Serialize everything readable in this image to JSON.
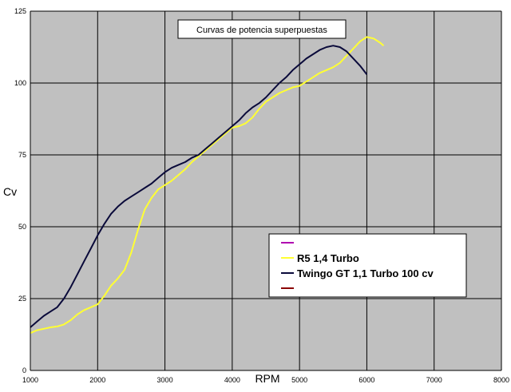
{
  "chart_data": {
    "type": "line",
    "title": "Curvas de potencia superpuestas",
    "xlabel": "RPM",
    "ylabel": "Cv",
    "xlim": [
      1000,
      8000
    ],
    "ylim": [
      0,
      125
    ],
    "x_ticks": [
      "1000",
      "2000",
      "3000",
      "4000",
      "5000",
      "6000",
      "7000",
      "8000"
    ],
    "y_ticks": [
      "0",
      "25",
      "50",
      "75",
      "100",
      "125"
    ],
    "grid": true,
    "plot_background": "#c0c0c0",
    "legend_position": "lower-right",
    "legend_entries": [
      {
        "label": "",
        "color": "#b000b0"
      },
      {
        "label": "R5 1,4 Turbo",
        "color": "#ffff33"
      },
      {
        "label": "Twingo GT 1,1 Turbo 100 cv",
        "color": "#0a0a3a"
      },
      {
        "label": "",
        "color": "#8b0000"
      }
    ],
    "series": [
      {
        "name": "R5 1,4 Turbo",
        "color": "#ffff33",
        "x": [
          1000,
          1100,
          1200,
          1300,
          1400,
          1500,
          1600,
          1700,
          1800,
          1900,
          2000,
          2100,
          2200,
          2300,
          2400,
          2500,
          2600,
          2700,
          2800,
          2900,
          3000,
          3100,
          3200,
          3300,
          3400,
          3500,
          3600,
          3700,
          3800,
          3900,
          4000,
          4100,
          4200,
          4300,
          4400,
          4500,
          4600,
          4700,
          4800,
          4900,
          5000,
          5100,
          5200,
          5300,
          5400,
          5500,
          5600,
          5700,
          5800,
          5900,
          6000,
          6100,
          6200,
          6250
        ],
        "y": [
          13,
          14,
          14.5,
          15,
          15.3,
          16,
          17.5,
          19.5,
          21,
          22,
          23,
          26,
          29.5,
          32,
          35,
          41,
          49,
          56,
          60,
          63,
          64.5,
          66,
          68,
          70,
          72.5,
          74.5,
          76.5,
          78.5,
          80.5,
          82.5,
          84.5,
          85,
          86,
          88,
          91,
          93.5,
          95,
          96.5,
          97.5,
          98.5,
          99,
          100.5,
          102,
          103.5,
          104.5,
          105.5,
          107,
          109.5,
          112,
          114.5,
          116,
          115.5,
          114,
          113
        ]
      },
      {
        "name": "Twingo GT 1,1 Turbo 100 cv",
        "color": "#0a0a3a",
        "x": [
          1000,
          1100,
          1200,
          1300,
          1400,
          1500,
          1600,
          1700,
          1800,
          1900,
          2000,
          2100,
          2200,
          2300,
          2400,
          2500,
          2600,
          2700,
          2800,
          2900,
          3000,
          3100,
          3200,
          3300,
          3400,
          3500,
          3600,
          3700,
          3800,
          3900,
          4000,
          4100,
          4200,
          4300,
          4400,
          4500,
          4600,
          4700,
          4800,
          4900,
          5000,
          5100,
          5200,
          5300,
          5400,
          5500,
          5600,
          5700,
          5800,
          5900,
          6000
        ],
        "y": [
          15,
          17,
          19,
          20.5,
          22,
          25,
          29,
          33.5,
          38,
          42.5,
          47,
          51,
          54.5,
          57,
          59,
          60.5,
          62,
          63.5,
          65,
          67,
          69,
          70.5,
          71.5,
          72.5,
          74,
          75,
          77,
          79,
          81,
          83,
          85,
          87,
          89.5,
          91.5,
          93,
          95,
          97.5,
          100,
          102,
          104.5,
          106.5,
          108.5,
          110,
          111.5,
          112.5,
          113,
          112.5,
          111,
          108.5,
          106,
          103
        ]
      }
    ]
  }
}
